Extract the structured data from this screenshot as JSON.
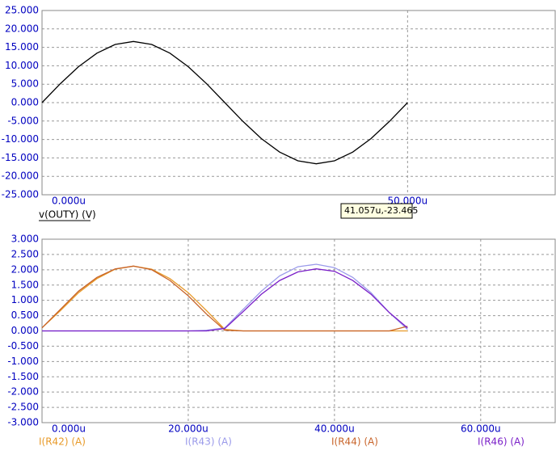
{
  "chart_data": [
    {
      "type": "line",
      "x": [
        0,
        2.5,
        5,
        7.5,
        10,
        12.5,
        15,
        17.5,
        20,
        22.5,
        25,
        27.5,
        30,
        32.5,
        35,
        37.5,
        40,
        42.5,
        45,
        47.5,
        50
      ],
      "series": [
        {
          "name": "v(OUTY) (V)",
          "color": "#000000",
          "values": [
            0,
            5.13,
            9.76,
            13.43,
            15.79,
            16.6,
            15.79,
            13.43,
            9.76,
            5.13,
            0,
            -5.13,
            -9.76,
            -13.43,
            -15.79,
            -16.6,
            -15.79,
            -13.43,
            -9.76,
            -5.13,
            0
          ]
        }
      ],
      "xlim": [
        0,
        70.3
      ],
      "xticks": [
        {
          "value": 0,
          "label": "0.000u"
        },
        {
          "value": 50,
          "label": "50.000u"
        }
      ],
      "ylim": [
        -25,
        25
      ],
      "yticks": [
        {
          "value": 25,
          "label": "25.000"
        },
        {
          "value": 20,
          "label": "20.000"
        },
        {
          "value": 15,
          "label": "15.000"
        },
        {
          "value": 10,
          "label": "10.000"
        },
        {
          "value": 5,
          "label": "5.000"
        },
        {
          "value": 0,
          "label": "0.000"
        },
        {
          "value": -5,
          "label": "-5.000"
        },
        {
          "value": -10,
          "label": "-10.000"
        },
        {
          "value": -15,
          "label": "-15.000"
        },
        {
          "value": -20,
          "label": "-20.000"
        },
        {
          "value": -25,
          "label": "-25.000"
        }
      ],
      "grid": true,
      "annotation": "41.057u,-23.465"
    },
    {
      "type": "line",
      "x": [
        0,
        2.5,
        5,
        7.5,
        10,
        12.5,
        15,
        17.5,
        20,
        22.5,
        25,
        27.5,
        30,
        32.5,
        35,
        37.5,
        40,
        42.5,
        45,
        47.5,
        50
      ],
      "series": [
        {
          "name": "I(R42) (A)",
          "color": "#e89a28",
          "values": [
            0.1,
            0.66,
            1.25,
            1.71,
            2.02,
            2.12,
            2.02,
            1.71,
            1.25,
            0.66,
            0.05,
            0,
            0,
            0,
            0,
            0,
            0,
            0,
            0,
            0,
            0
          ]
        },
        {
          "name": "I(R43) (A)",
          "color": "#9a9aea",
          "values": [
            0,
            0,
            0,
            0,
            0,
            0,
            0,
            0,
            0,
            0.02,
            0.1,
            0.7,
            1.3,
            1.8,
            2.1,
            2.18,
            2.07,
            1.75,
            1.25,
            0.6,
            0.05
          ]
        },
        {
          "name": "I(R44) (A)",
          "color": "#c8642a",
          "values": [
            0.1,
            0.7,
            1.3,
            1.75,
            2.03,
            2.12,
            2.0,
            1.65,
            1.15,
            0.55,
            0.02,
            0,
            0,
            0,
            0,
            0,
            0,
            0,
            0,
            0,
            0.15
          ]
        },
        {
          "name": "I(R46) (A)",
          "color": "#7a1ec8",
          "values": [
            0,
            0,
            0,
            0,
            0,
            0,
            0,
            0,
            0,
            0,
            0.08,
            0.63,
            1.2,
            1.65,
            1.93,
            2.03,
            1.95,
            1.65,
            1.2,
            0.6,
            0.1
          ]
        }
      ],
      "xlim": [
        0,
        70.3
      ],
      "xticks": [
        {
          "value": 0,
          "label": "0.000u"
        },
        {
          "value": 20,
          "label": "20.000u"
        },
        {
          "value": 40,
          "label": "40.000u"
        },
        {
          "value": 60,
          "label": "60.000u"
        }
      ],
      "ylim": [
        -3,
        3
      ],
      "yticks": [
        {
          "value": 3,
          "label": "3.000"
        },
        {
          "value": 2.5,
          "label": "2.500"
        },
        {
          "value": 2,
          "label": "2.000"
        },
        {
          "value": 1.5,
          "label": "1.500"
        },
        {
          "value": 1,
          "label": "1.000"
        },
        {
          "value": 0.5,
          "label": "0.500"
        },
        {
          "value": 0,
          "label": "0.000"
        },
        {
          "value": -0.5,
          "label": "-0.500"
        },
        {
          "value": -1,
          "label": "-1.000"
        },
        {
          "value": -1.5,
          "label": "-1.500"
        },
        {
          "value": -2,
          "label": "-2.000"
        },
        {
          "value": -2.5,
          "label": "-2.500"
        },
        {
          "value": -3,
          "label": "-3.000"
        }
      ],
      "grid": true
    }
  ]
}
